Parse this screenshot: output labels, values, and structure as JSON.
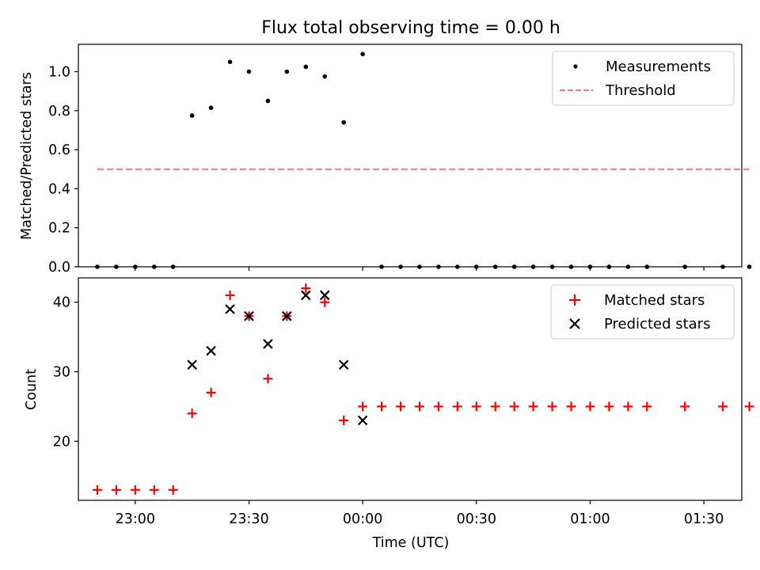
{
  "chart_data": [
    {
      "type": "scatter",
      "title": "Flux total observing time = 0.00 h",
      "ylabel": "Matched/Predicted stars",
      "xlim": [
        "22:45",
        "01:40"
      ],
      "ylim": [
        0,
        1.14
      ],
      "yticks": [
        0.0,
        0.2,
        0.4,
        0.6,
        0.8,
        1.0
      ],
      "ytick_labels": [
        "0.0",
        "0.2",
        "0.4",
        "0.6",
        "0.8",
        "1.0"
      ],
      "grid": false,
      "legend_position": "top-right",
      "series": [
        {
          "name": "Measurements",
          "marker": "dot",
          "color": "#000000",
          "points": [
            [
              "22:50",
              0
            ],
            [
              "22:55",
              0
            ],
            [
              "23:00",
              0
            ],
            [
              "23:05",
              0
            ],
            [
              "23:10",
              0
            ],
            [
              "23:15",
              0.775
            ],
            [
              "23:20",
              0.815
            ],
            [
              "23:25",
              1.05
            ],
            [
              "23:30",
              1.0
            ],
            [
              "23:35",
              0.85
            ],
            [
              "23:40",
              1.0
            ],
            [
              "23:45",
              1.025
            ],
            [
              "23:50",
              0.975
            ],
            [
              "23:55",
              0.74
            ],
            [
              "00:00",
              1.09
            ],
            [
              "00:05",
              0
            ],
            [
              "00:10",
              0
            ],
            [
              "00:15",
              0
            ],
            [
              "00:20",
              0
            ],
            [
              "00:25",
              0
            ],
            [
              "00:30",
              0
            ],
            [
              "00:35",
              0
            ],
            [
              "00:40",
              0
            ],
            [
              "00:45",
              0
            ],
            [
              "00:50",
              0
            ],
            [
              "00:55",
              0
            ],
            [
              "01:00",
              0
            ],
            [
              "01:05",
              0
            ],
            [
              "01:10",
              0
            ],
            [
              "01:15",
              0
            ],
            [
              "01:25",
              0
            ],
            [
              "01:35",
              0
            ],
            [
              "01:42",
              0
            ]
          ]
        },
        {
          "name": "Threshold",
          "style": "dashed-line",
          "color": "#ff7777",
          "x": [
            "22:50",
            "01:42"
          ],
          "y": [
            0.5,
            0.5
          ]
        }
      ]
    },
    {
      "type": "scatter",
      "xlabel": "Time (UTC)",
      "ylabel": "Count",
      "xlim": [
        "22:45",
        "01:40"
      ],
      "ylim": [
        11.5,
        43.5
      ],
      "xticks": [
        "23:00",
        "23:30",
        "00:00",
        "00:30",
        "01:00",
        "01:30"
      ],
      "xtick_labels": [
        "23:00",
        "23:30",
        "00:00",
        "00:30",
        "01:00",
        "01:30"
      ],
      "yticks": [
        20,
        30,
        40
      ],
      "ytick_labels": [
        "20",
        "30",
        "40"
      ],
      "grid": false,
      "legend_position": "top-right",
      "series": [
        {
          "name": "Matched stars",
          "marker": "plus",
          "color": "#ff0000",
          "points": [
            [
              "22:50",
              13
            ],
            [
              "22:55",
              13
            ],
            [
              "23:00",
              13
            ],
            [
              "23:05",
              13
            ],
            [
              "23:10",
              13
            ],
            [
              "23:15",
              24
            ],
            [
              "23:20",
              27
            ],
            [
              "23:25",
              41
            ],
            [
              "23:30",
              38
            ],
            [
              "23:35",
              29
            ],
            [
              "23:40",
              38
            ],
            [
              "23:45",
              42
            ],
            [
              "23:50",
              40
            ],
            [
              "23:55",
              23
            ],
            [
              "00:00",
              25
            ],
            [
              "00:05",
              25
            ],
            [
              "00:10",
              25
            ],
            [
              "00:15",
              25
            ],
            [
              "00:20",
              25
            ],
            [
              "00:25",
              25
            ],
            [
              "00:30",
              25
            ],
            [
              "00:35",
              25
            ],
            [
              "00:40",
              25
            ],
            [
              "00:45",
              25
            ],
            [
              "00:50",
              25
            ],
            [
              "00:55",
              25
            ],
            [
              "01:00",
              25
            ],
            [
              "01:05",
              25
            ],
            [
              "01:10",
              25
            ],
            [
              "01:15",
              25
            ],
            [
              "01:25",
              25
            ],
            [
              "01:35",
              25
            ],
            [
              "01:42",
              25
            ]
          ]
        },
        {
          "name": "Predicted stars",
          "marker": "x",
          "color": "#000000",
          "points": [
            [
              "23:15",
              31
            ],
            [
              "23:20",
              33
            ],
            [
              "23:25",
              39
            ],
            [
              "23:30",
              38
            ],
            [
              "23:35",
              34
            ],
            [
              "23:40",
              38
            ],
            [
              "23:45",
              41
            ],
            [
              "23:50",
              41
            ],
            [
              "23:55",
              31
            ],
            [
              "00:00",
              23
            ]
          ]
        }
      ]
    }
  ]
}
